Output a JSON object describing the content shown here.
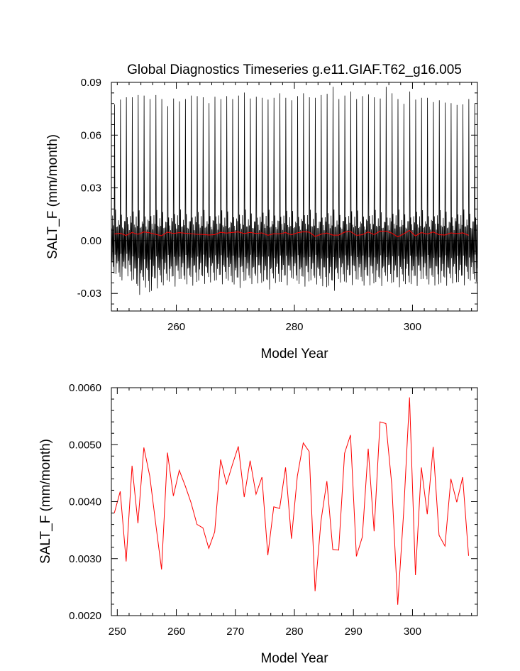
{
  "chart_data": [
    {
      "type": "line",
      "title": "Global Diagnostics Timeseries g.e11.GIAF.T62_g16.005",
      "xlabel": "Model Year",
      "ylabel": "SALT_F (mm/month)",
      "xlim": [
        249,
        311
      ],
      "ylim": [
        -0.04,
        0.09
      ],
      "xticks": [
        260,
        280,
        300
      ],
      "xtick_labels": [
        "260",
        "280",
        "300"
      ],
      "yticks": [
        -0.03,
        0.0,
        0.03,
        0.06,
        0.09
      ],
      "ytick_labels": [
        "-0.03",
        "0.00",
        "0.03",
        "0.06",
        "0.09"
      ],
      "zero_line": 0.0,
      "series": [
        {
          "color": "#000000",
          "kind": "monthly",
          "start_year": 249,
          "annual_peaks": [
            0.0775,
            0.0802,
            0.0815,
            0.0815,
            0.0828,
            0.0825,
            0.0805,
            0.0828,
            0.0805,
            0.0765,
            0.0808,
            0.0792,
            0.0805,
            0.0825,
            0.0822,
            0.0815,
            0.0782,
            0.0818,
            0.0805,
            0.0822,
            0.0805,
            0.0825,
            0.0842,
            0.0808,
            0.0818,
            0.0812,
            0.0802,
            0.0812,
            0.0838,
            0.0812,
            0.0798,
            0.0822,
            0.0838,
            0.0815,
            0.0812,
            0.0828,
            0.0835,
            0.0875,
            0.0805,
            0.0825,
            0.0848,
            0.0805,
            0.0822,
            0.0832,
            0.0815,
            0.0808,
            0.0875,
            0.0838,
            0.0805,
            0.0778,
            0.0848,
            0.0802,
            0.0812,
            0.0812,
            0.0788,
            0.0798,
            0.0785,
            0.0782,
            0.0772,
            0.0775,
            0.0805,
            0.0778
          ],
          "annual_mins": [
            -0.0215,
            -0.0232,
            -0.0205,
            -0.0252,
            -0.0305,
            -0.0282,
            -0.0318,
            -0.0265,
            -0.0282,
            -0.0248,
            -0.0258,
            -0.0248,
            -0.0252,
            -0.0262,
            -0.0258,
            -0.0242,
            -0.0255,
            -0.0248,
            -0.0242,
            -0.0255,
            -0.0262,
            -0.0268,
            -0.0258,
            -0.0248,
            -0.0252,
            -0.0262,
            -0.0272,
            -0.0262,
            -0.0255,
            -0.0248,
            -0.0245,
            -0.0255,
            -0.0262,
            -0.0258,
            -0.0248,
            -0.0272,
            -0.0288,
            -0.0278,
            -0.0262,
            -0.0255,
            -0.0248,
            -0.0252,
            -0.0262,
            -0.0258,
            -0.0268,
            -0.0255,
            -0.0248,
            -0.0262,
            -0.0258,
            -0.0275,
            -0.0262,
            -0.0255,
            -0.0248,
            -0.0252,
            -0.0262,
            -0.0272,
            -0.0252,
            -0.0262,
            -0.0258,
            -0.0248,
            -0.0255,
            -0.0245
          ]
        },
        {
          "color": "#ff0000",
          "kind": "annual",
          "x": [
            249,
            250,
            251,
            252,
            253,
            254,
            255,
            256,
            257,
            258,
            259,
            260,
            261,
            262,
            263,
            264,
            265,
            266,
            267,
            268,
            269,
            270,
            271,
            272,
            273,
            274,
            275,
            276,
            277,
            278,
            279,
            280,
            281,
            282,
            283,
            284,
            285,
            286,
            287,
            288,
            289,
            290,
            291,
            292,
            293,
            294,
            295,
            296,
            297,
            298,
            299,
            300,
            301,
            302,
            303,
            304,
            305,
            306,
            307,
            308,
            309
          ],
          "values": [
            0.0038,
            0.00418,
            0.00295,
            0.00463,
            0.00362,
            0.00495,
            0.00445,
            0.00362,
            0.00281,
            0.00486,
            0.0041,
            0.00455,
            0.00428,
            0.00398,
            0.0036,
            0.00354,
            0.00318,
            0.00347,
            0.00474,
            0.00431,
            0.00465,
            0.00497,
            0.00408,
            0.00472,
            0.00413,
            0.00443,
            0.00306,
            0.00391,
            0.00388,
            0.0046,
            0.00335,
            0.00445,
            0.00503,
            0.00488,
            0.00243,
            0.00366,
            0.00436,
            0.00316,
            0.00315,
            0.00485,
            0.00517,
            0.00304,
            0.00338,
            0.00493,
            0.00348,
            0.0054,
            0.00537,
            0.00429,
            0.00219,
            0.00381,
            0.00583,
            0.00271,
            0.0046,
            0.00378,
            0.00496,
            0.00341,
            0.00322,
            0.0044,
            0.00399,
            0.00443,
            0.00305
          ]
        }
      ]
    },
    {
      "type": "line",
      "title": "",
      "xlabel": "Model Year",
      "ylabel": "SALT_F (mm/month)",
      "xlim": [
        249,
        311
      ],
      "ylim": [
        0.002,
        0.006
      ],
      "xticks": [
        250,
        260,
        270,
        280,
        290,
        300
      ],
      "xtick_labels": [
        "250",
        "260",
        "270",
        "280",
        "290",
        "300"
      ],
      "yticks": [
        0.002,
        0.003,
        0.004,
        0.005,
        0.006
      ],
      "ytick_labels": [
        "0.0020",
        "0.0030",
        "0.0040",
        "0.0050",
        "0.0060"
      ],
      "series": [
        {
          "color": "#ff0000",
          "kind": "annual",
          "x": [
            249,
            250,
            251,
            252,
            253,
            254,
            255,
            256,
            257,
            258,
            259,
            260,
            261,
            262,
            263,
            264,
            265,
            266,
            267,
            268,
            269,
            270,
            271,
            272,
            273,
            274,
            275,
            276,
            277,
            278,
            279,
            280,
            281,
            282,
            283,
            284,
            285,
            286,
            287,
            288,
            289,
            290,
            291,
            292,
            293,
            294,
            295,
            296,
            297,
            298,
            299,
            300,
            301,
            302,
            303,
            304,
            305,
            306,
            307,
            308,
            309
          ],
          "values": [
            0.0038,
            0.00418,
            0.00295,
            0.00463,
            0.00362,
            0.00495,
            0.00445,
            0.00362,
            0.00281,
            0.00486,
            0.0041,
            0.00455,
            0.00428,
            0.00398,
            0.0036,
            0.00354,
            0.00318,
            0.00347,
            0.00474,
            0.00431,
            0.00465,
            0.00497,
            0.00408,
            0.00472,
            0.00413,
            0.00443,
            0.00306,
            0.00391,
            0.00388,
            0.0046,
            0.00335,
            0.00445,
            0.00503,
            0.00488,
            0.00243,
            0.00366,
            0.00436,
            0.00316,
            0.00315,
            0.00485,
            0.00517,
            0.00304,
            0.00338,
            0.00493,
            0.00348,
            0.0054,
            0.00537,
            0.00429,
            0.00219,
            0.00381,
            0.00583,
            0.00271,
            0.0046,
            0.00378,
            0.00496,
            0.00341,
            0.00322,
            0.0044,
            0.00399,
            0.00443,
            0.00305
          ]
        }
      ]
    }
  ]
}
